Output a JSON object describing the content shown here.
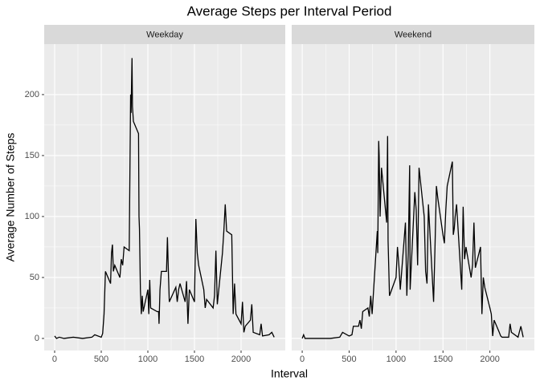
{
  "chart_data": {
    "type": "line",
    "title": "Average Steps per Interval Period",
    "xlabel": "Interval",
    "ylabel": "Average Number of Steps",
    "xlim": [
      -112,
      2474
    ],
    "ylim": [
      -9.9,
      241.4
    ],
    "xticks": [
      0,
      500,
      1000,
      1500,
      2000
    ],
    "yticks": [
      0,
      50,
      100,
      150,
      200
    ],
    "grid": true,
    "facets": [
      {
        "name": "Weekday",
        "color": "#000000",
        "x": [
          0,
          20,
          50,
          100,
          200,
          300,
          400,
          430,
          500,
          515,
          530,
          545,
          600,
          610,
          620,
          630,
          645,
          700,
          715,
          730,
          745,
          800,
          815,
          820,
          830,
          835,
          845,
          900,
          905,
          910,
          920,
          930,
          940,
          950,
          1000,
          1010,
          1020,
          1030,
          1100,
          1115,
          1120,
          1130,
          1145,
          1200,
          1210,
          1220,
          1230,
          1300,
          1315,
          1330,
          1345,
          1400,
          1415,
          1430,
          1445,
          1500,
          1515,
          1530,
          1545,
          1600,
          1615,
          1630,
          1700,
          1715,
          1730,
          1745,
          1800,
          1815,
          1830,
          1845,
          1900,
          1915,
          1930,
          1945,
          2000,
          2015,
          2030,
          2045,
          2100,
          2115,
          2130,
          2200,
          2215,
          2230,
          2300,
          2330,
          2355
        ],
        "values": [
          2,
          0,
          1,
          0,
          1,
          0,
          1,
          3,
          1,
          4,
          20,
          55,
          45,
          70,
          77,
          55,
          60,
          50,
          65,
          60,
          75,
          72,
          200,
          185,
          230,
          190,
          178,
          168,
          100,
          90,
          40,
          20,
          35,
          22,
          40,
          20,
          48,
          25,
          22,
          22,
          12,
          40,
          55,
          55,
          83,
          55,
          30,
          42,
          30,
          40,
          45,
          30,
          47,
          12,
          40,
          30,
          98,
          70,
          60,
          40,
          25,
          32,
          25,
          35,
          72,
          28,
          70,
          88,
          110,
          88,
          85,
          20,
          45,
          20,
          12,
          30,
          5,
          10,
          15,
          28,
          5,
          3,
          12,
          2,
          3,
          5,
          1
        ]
      },
      {
        "name": "Weekend",
        "color": "#000000",
        "x": [
          0,
          15,
          30,
          100,
          200,
          300,
          400,
          430,
          500,
          530,
          545,
          600,
          615,
          630,
          645,
          700,
          715,
          730,
          745,
          800,
          805,
          815,
          820,
          830,
          845,
          900,
          910,
          915,
          930,
          1000,
          1015,
          1030,
          1045,
          1100,
          1115,
          1130,
          1145,
          1150,
          1200,
          1215,
          1230,
          1245,
          1300,
          1315,
          1330,
          1345,
          1400,
          1415,
          1430,
          1445,
          1500,
          1515,
          1530,
          1545,
          1600,
          1610,
          1620,
          1630,
          1645,
          1700,
          1715,
          1730,
          1745,
          1800,
          1815,
          1830,
          1845,
          1900,
          1915,
          1930,
          1945,
          2000,
          2015,
          2030,
          2045,
          2100,
          2115,
          2130,
          2200,
          2215,
          2230,
          2300,
          2330,
          2355
        ],
        "values": [
          0,
          3,
          0,
          0,
          0,
          0,
          1,
          5,
          2,
          3,
          10,
          10,
          15,
          8,
          22,
          25,
          18,
          35,
          20,
          88,
          70,
          162,
          150,
          100,
          140,
          95,
          166,
          80,
          35,
          50,
          75,
          60,
          40,
          95,
          35,
          70,
          142,
          40,
          120,
          105,
          60,
          140,
          100,
          55,
          45,
          110,
          30,
          75,
          125,
          115,
          85,
          78,
          105,
          125,
          145,
          85,
          90,
          100,
          110,
          40,
          108,
          65,
          75,
          50,
          60,
          95,
          58,
          75,
          20,
          50,
          42,
          25,
          20,
          2,
          15,
          5,
          2,
          1,
          1,
          12,
          5,
          1,
          10,
          1
        ]
      }
    ]
  }
}
